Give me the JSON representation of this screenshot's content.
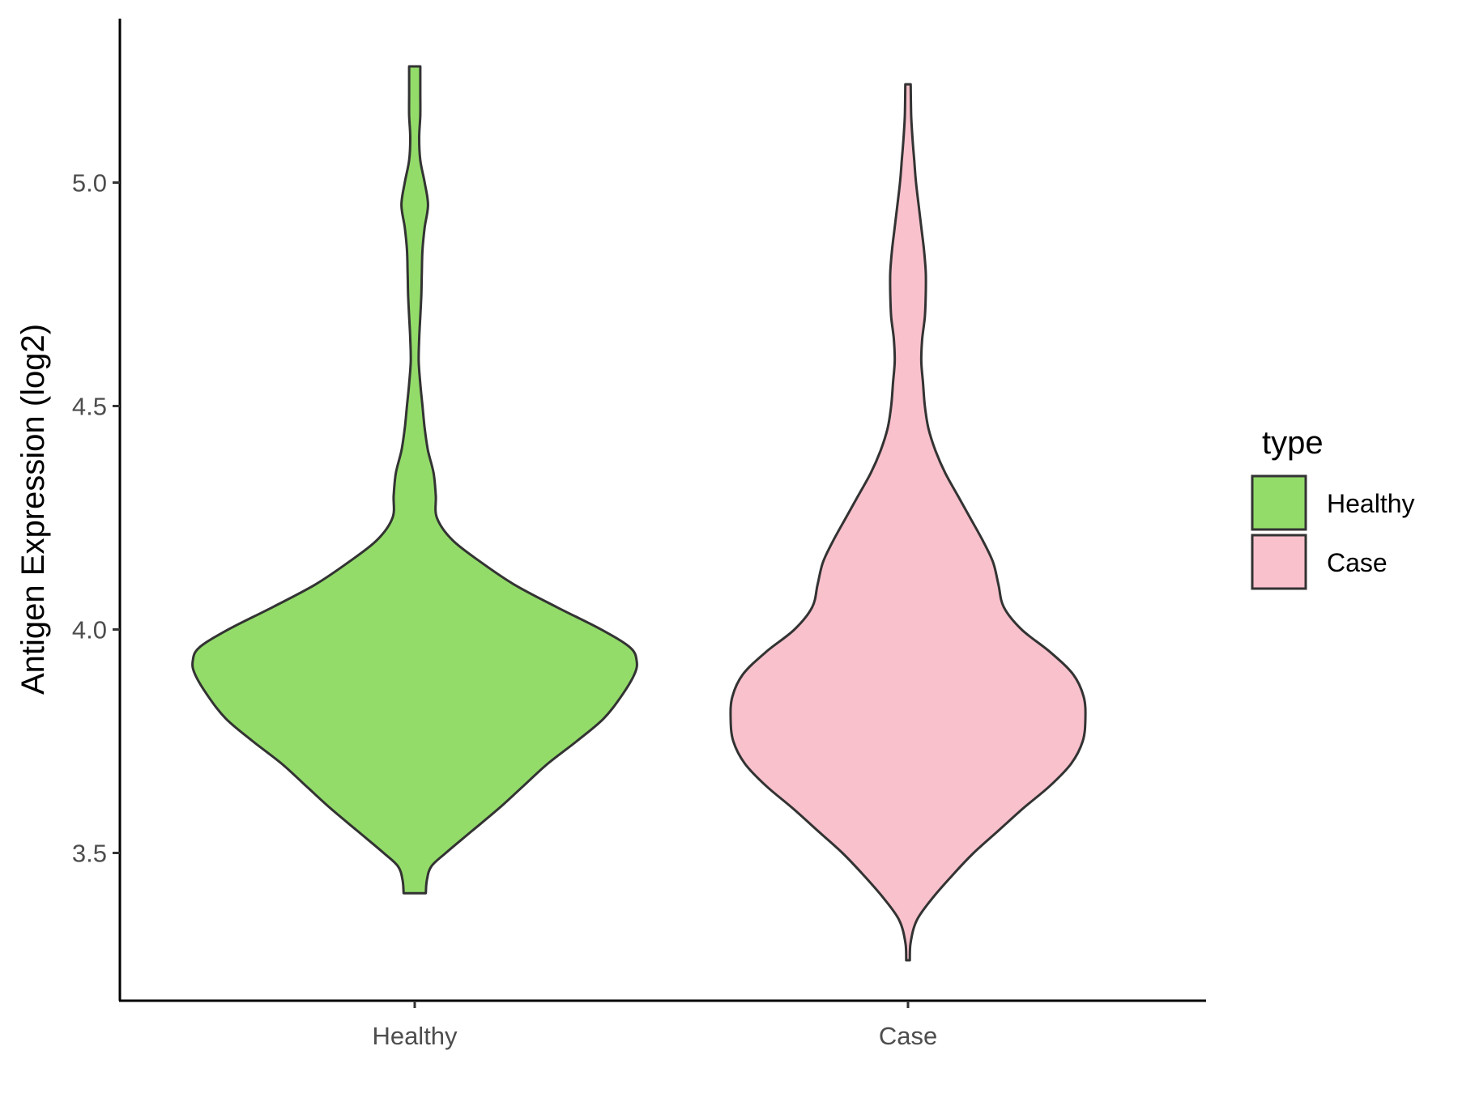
{
  "chart_data": {
    "type": "violin",
    "title": "",
    "xlabel": "",
    "ylabel": "Antigen Expression (log2)",
    "categories": [
      "Healthy",
      "Case"
    ],
    "ylim": [
      3.2,
      5.3
    ],
    "yticks": [
      3.5,
      4.0,
      4.5,
      5.0
    ],
    "ytick_labels": [
      "3.5",
      "4.0",
      "4.5",
      "5.0"
    ],
    "grid": false,
    "legend": {
      "title": "type",
      "position": "right",
      "entries": [
        {
          "label": "Healthy",
          "color": "#93dc6a"
        },
        {
          "label": "Case",
          "color": "#f8c1cc"
        }
      ]
    },
    "series": [
      {
        "category": "Healthy",
        "color": "#93dc6a",
        "range": [
          3.41,
          5.26
        ],
        "density_profile": [
          [
            3.41,
            0.05
          ],
          [
            3.44,
            0.055
          ],
          [
            3.47,
            0.075
          ],
          [
            3.5,
            0.14
          ],
          [
            3.55,
            0.26
          ],
          [
            3.6,
            0.38
          ],
          [
            3.65,
            0.49
          ],
          [
            3.7,
            0.6
          ],
          [
            3.75,
            0.73
          ],
          [
            3.8,
            0.85
          ],
          [
            3.85,
            0.93
          ],
          [
            3.9,
            0.99
          ],
          [
            3.93,
            1.0
          ],
          [
            3.96,
            0.97
          ],
          [
            4.0,
            0.84
          ],
          [
            4.05,
            0.64
          ],
          [
            4.1,
            0.45
          ],
          [
            4.15,
            0.3
          ],
          [
            4.2,
            0.17
          ],
          [
            4.25,
            0.1
          ],
          [
            4.3,
            0.095
          ],
          [
            4.35,
            0.085
          ],
          [
            4.4,
            0.06
          ],
          [
            4.45,
            0.045
          ],
          [
            4.5,
            0.035
          ],
          [
            4.55,
            0.025
          ],
          [
            4.6,
            0.018
          ],
          [
            4.65,
            0.02
          ],
          [
            4.7,
            0.025
          ],
          [
            4.75,
            0.03
          ],
          [
            4.8,
            0.032
          ],
          [
            4.85,
            0.035
          ],
          [
            4.9,
            0.045
          ],
          [
            4.95,
            0.06
          ],
          [
            5.0,
            0.045
          ],
          [
            5.05,
            0.025
          ],
          [
            5.1,
            0.02
          ],
          [
            5.15,
            0.025
          ],
          [
            5.2,
            0.025
          ],
          [
            5.26,
            0.025
          ]
        ]
      },
      {
        "category": "Case",
        "color": "#f8c1cc",
        "range": [
          3.26,
          5.22
        ],
        "density_profile": [
          [
            3.26,
            0.01
          ],
          [
            3.3,
            0.015
          ],
          [
            3.35,
            0.05
          ],
          [
            3.4,
            0.14
          ],
          [
            3.45,
            0.25
          ],
          [
            3.5,
            0.37
          ],
          [
            3.55,
            0.51
          ],
          [
            3.6,
            0.65
          ],
          [
            3.65,
            0.8
          ],
          [
            3.7,
            0.92
          ],
          [
            3.75,
            0.985
          ],
          [
            3.8,
            1.0
          ],
          [
            3.85,
            0.99
          ],
          [
            3.9,
            0.93
          ],
          [
            3.95,
            0.8
          ],
          [
            4.0,
            0.64
          ],
          [
            4.05,
            0.54
          ],
          [
            4.1,
            0.51
          ],
          [
            4.15,
            0.48
          ],
          [
            4.2,
            0.42
          ],
          [
            4.25,
            0.35
          ],
          [
            4.3,
            0.28
          ],
          [
            4.35,
            0.21
          ],
          [
            4.4,
            0.155
          ],
          [
            4.45,
            0.115
          ],
          [
            4.5,
            0.095
          ],
          [
            4.55,
            0.085
          ],
          [
            4.6,
            0.075
          ],
          [
            4.65,
            0.08
          ],
          [
            4.7,
            0.095
          ],
          [
            4.75,
            0.1
          ],
          [
            4.8,
            0.1
          ],
          [
            4.85,
            0.09
          ],
          [
            4.9,
            0.075
          ],
          [
            4.95,
            0.06
          ],
          [
            5.0,
            0.045
          ],
          [
            5.05,
            0.035
          ],
          [
            5.1,
            0.025
          ],
          [
            5.15,
            0.018
          ],
          [
            5.22,
            0.015
          ]
        ]
      }
    ]
  }
}
